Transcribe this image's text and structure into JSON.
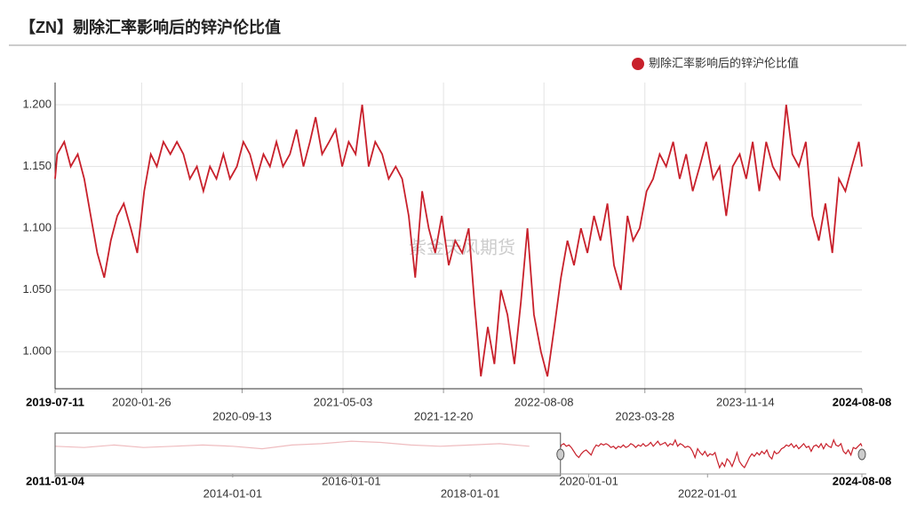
{
  "chart_data": {
    "type": "line",
    "title": "【ZN】剔除汇率影响后的锌沪伦比值",
    "watermark": "紫金天风期货",
    "legend_position": "top-right",
    "grid": true,
    "x": [
      "2019-07-11",
      "2019-07-16",
      "2019-08-01",
      "2019-08-16",
      "2019-09-01",
      "2019-09-16",
      "2019-10-01",
      "2019-10-16",
      "2019-11-01",
      "2019-11-16",
      "2019-12-01",
      "2019-12-16",
      "2020-01-01",
      "2020-01-16",
      "2020-02-01",
      "2020-02-16",
      "2020-03-01",
      "2020-03-16",
      "2020-04-01",
      "2020-04-16",
      "2020-05-01",
      "2020-05-16",
      "2020-06-01",
      "2020-06-16",
      "2020-07-01",
      "2020-07-16",
      "2020-08-01",
      "2020-08-16",
      "2020-09-01",
      "2020-09-16",
      "2020-10-01",
      "2020-10-16",
      "2020-11-01",
      "2020-11-16",
      "2020-12-01",
      "2020-12-16",
      "2021-01-01",
      "2021-01-16",
      "2021-02-01",
      "2021-02-16",
      "2021-03-01",
      "2021-03-16",
      "2021-04-01",
      "2021-04-16",
      "2021-05-01",
      "2021-05-16",
      "2021-06-01",
      "2021-06-16",
      "2021-07-01",
      "2021-07-16",
      "2021-08-01",
      "2021-08-16",
      "2021-09-01",
      "2021-09-16",
      "2021-10-01",
      "2021-10-16",
      "2021-11-01",
      "2021-11-16",
      "2021-12-01",
      "2021-12-16",
      "2022-01-01",
      "2022-01-16",
      "2022-02-01",
      "2022-02-16",
      "2022-03-01",
      "2022-03-16",
      "2022-04-01",
      "2022-04-16",
      "2022-05-01",
      "2022-05-16",
      "2022-06-01",
      "2022-06-16",
      "2022-07-01",
      "2022-07-16",
      "2022-08-01",
      "2022-08-16",
      "2022-09-01",
      "2022-09-16",
      "2022-10-01",
      "2022-10-16",
      "2022-11-01",
      "2022-11-16",
      "2022-12-01",
      "2022-12-16",
      "2023-01-01",
      "2023-01-16",
      "2023-02-01",
      "2023-02-16",
      "2023-03-01",
      "2023-03-16",
      "2023-04-01",
      "2023-04-16",
      "2023-05-01",
      "2023-05-16",
      "2023-06-01",
      "2023-06-16",
      "2023-07-01",
      "2023-07-16",
      "2023-08-01",
      "2023-08-16",
      "2023-09-01",
      "2023-09-16",
      "2023-10-01",
      "2023-10-16",
      "2023-11-01",
      "2023-11-16",
      "2023-12-01",
      "2023-12-16",
      "2024-01-01",
      "2024-01-16",
      "2024-02-01",
      "2024-02-16",
      "2024-03-01",
      "2024-03-16",
      "2024-04-01",
      "2024-04-16",
      "2024-05-01",
      "2024-05-16",
      "2024-06-01",
      "2024-06-16",
      "2024-07-01",
      "2024-07-16",
      "2024-08-01",
      "2024-08-08"
    ],
    "series": [
      {
        "name": "剔除汇率影响后的锌沪伦比值",
        "color": "#c8202b",
        "values": [
          1.14,
          1.16,
          1.17,
          1.15,
          1.16,
          1.14,
          1.11,
          1.08,
          1.06,
          1.09,
          1.11,
          1.12,
          1.1,
          1.08,
          1.13,
          1.16,
          1.15,
          1.17,
          1.16,
          1.17,
          1.16,
          1.14,
          1.15,
          1.13,
          1.15,
          1.14,
          1.16,
          1.14,
          1.15,
          1.17,
          1.16,
          1.14,
          1.16,
          1.15,
          1.17,
          1.15,
          1.16,
          1.18,
          1.15,
          1.17,
          1.19,
          1.16,
          1.17,
          1.18,
          1.15,
          1.17,
          1.16,
          1.2,
          1.15,
          1.17,
          1.16,
          1.14,
          1.15,
          1.14,
          1.11,
          1.06,
          1.13,
          1.1,
          1.08,
          1.11,
          1.07,
          1.09,
          1.08,
          1.1,
          1.04,
          0.98,
          1.02,
          0.99,
          1.05,
          1.03,
          0.99,
          1.04,
          1.1,
          1.03,
          1.0,
          0.98,
          1.02,
          1.06,
          1.09,
          1.07,
          1.1,
          1.08,
          1.11,
          1.09,
          1.12,
          1.07,
          1.05,
          1.11,
          1.09,
          1.1,
          1.13,
          1.14,
          1.16,
          1.15,
          1.17,
          1.14,
          1.16,
          1.13,
          1.15,
          1.17,
          1.14,
          1.15,
          1.11,
          1.15,
          1.16,
          1.14,
          1.17,
          1.13,
          1.17,
          1.15,
          1.14,
          1.2,
          1.16,
          1.15,
          1.17,
          1.11,
          1.09,
          1.12,
          1.08,
          1.14,
          1.13,
          1.15,
          1.17,
          1.15
        ]
      }
    ],
    "xlim": [
      "2019-07-11",
      "2024-08-08"
    ],
    "xticks": [
      "2019-07-11",
      "2020-01-26",
      "2020-09-13",
      "2021-05-03",
      "2021-12-20",
      "2022-08-08",
      "2023-03-28",
      "2023-11-14",
      "2024-08-08"
    ],
    "ylim": [
      0.97,
      1.218
    ],
    "yticks": [
      {
        "value": 1,
        "label": "1.000"
      },
      {
        "value": 1.05,
        "label": "1.050"
      },
      {
        "value": 1.1,
        "label": "1.100"
      },
      {
        "value": 1.15,
        "label": "1.150"
      },
      {
        "value": 1.2,
        "label": "1.200"
      }
    ],
    "navigator": {
      "x": [
        "2011-01-04",
        "2011-07-01",
        "2012-01-01",
        "2012-07-01",
        "2013-01-01",
        "2013-07-01",
        "2014-01-01",
        "2014-07-01",
        "2015-01-01",
        "2015-07-01",
        "2016-01-01",
        "2016-07-01",
        "2017-01-01",
        "2017-07-01",
        "2018-01-01",
        "2018-07-01",
        "2019-01-01"
      ],
      "values": [
        1.15,
        1.14,
        1.16,
        1.14,
        1.15,
        1.16,
        1.15,
        1.13,
        1.16,
        1.17,
        1.19,
        1.18,
        1.16,
        1.15,
        1.16,
        1.17,
        1.15
      ],
      "xlim": [
        "2011-01-04",
        "2024-08-08"
      ],
      "ylim": [
        0.93,
        1.24
      ],
      "xticks": [
        "2011-01-04",
        "2014-01-01",
        "2016-01-01",
        "2018-01-01",
        "2020-01-01",
        "2022-01-01",
        "2024-08-08"
      ]
    }
  }
}
